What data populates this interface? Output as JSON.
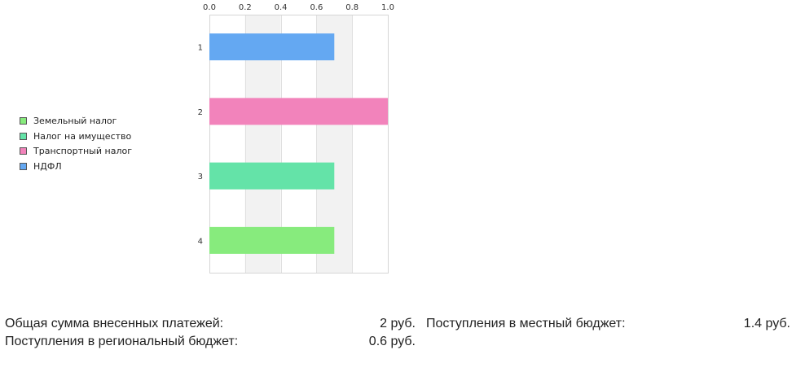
{
  "chart_data": {
    "type": "bar",
    "orientation": "horizontal",
    "categories": [
      "1",
      "2",
      "3",
      "4"
    ],
    "values": [
      0.7,
      1.0,
      0.7,
      0.7
    ],
    "bar_colors": [
      "#64a8f2",
      "#f283bb",
      "#64e3a8",
      "#87eb7d"
    ],
    "xlim": [
      0,
      1.0
    ],
    "xticks": [
      "0.0",
      "0.2",
      "0.4",
      "0.6",
      "0.8",
      "1.0"
    ],
    "xtick_values": [
      0,
      0.2,
      0.4,
      0.6,
      0.8,
      1.0
    ],
    "grid": "alternating vertical bands"
  },
  "legend": {
    "items": [
      {
        "label": "Земельный налог",
        "color": "#87eb7d"
      },
      {
        "label": "Налог на имущество",
        "color": "#64e3a8"
      },
      {
        "label": "Транспортный налог",
        "color": "#f283bb"
      },
      {
        "label": "НДФЛ",
        "color": "#64a8f2"
      }
    ]
  },
  "summary": {
    "total_label": "Общая сумма внесенных платежей:",
    "total_value": "2 руб.",
    "local_label": "Поступления в местный бюджет:",
    "local_value": "1.4 руб.",
    "regional_label": "Поступления в региональный бюджет:",
    "regional_value": "0.6 руб."
  }
}
